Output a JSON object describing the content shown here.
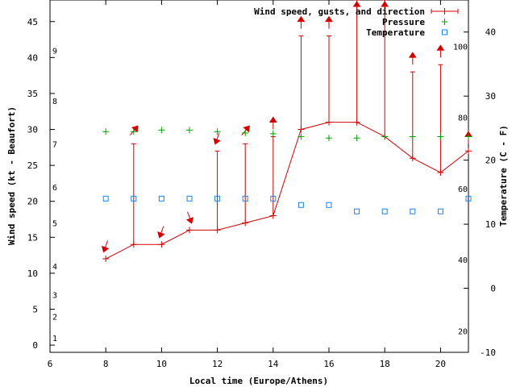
{
  "chart_data": {
    "type": "line",
    "title": "",
    "xlabel": "Local time (Europe/Athens)",
    "ylabel": "Wind speed (kt - Beaufort)",
    "y2label": "Temperature (C - F)",
    "xlim": [
      6,
      21
    ],
    "ylim": [
      -1,
      48
    ],
    "y2lim": [
      -10,
      45
    ],
    "x_ticks": [
      6,
      8,
      10,
      12,
      14,
      16,
      18,
      20
    ],
    "y_ticks": [
      0,
      5,
      10,
      15,
      20,
      25,
      30,
      35,
      40,
      45
    ],
    "y2_ticks": [
      -10,
      0,
      10,
      20,
      30,
      40
    ],
    "beaufort_labels": [
      {
        "label": "1",
        "kt": 1
      },
      {
        "label": "2",
        "kt": 4
      },
      {
        "label": "3",
        "kt": 7
      },
      {
        "label": "4",
        "kt": 11
      },
      {
        "label": "5",
        "kt": 17
      },
      {
        "label": "6",
        "kt": 22
      },
      {
        "label": "7",
        "kt": 28
      },
      {
        "label": "8",
        "kt": 34
      },
      {
        "label": "9",
        "kt": 41
      }
    ],
    "fahrenheit_labels": [
      {
        "label": "20",
        "f": 20
      },
      {
        "label": "40",
        "f": 40
      },
      {
        "label": "60",
        "f": 60
      },
      {
        "label": "80",
        "f": 80
      },
      {
        "label": "100",
        "f": 100
      }
    ],
    "legend": [
      {
        "label": "Wind speed, gusts, and direction",
        "color": "#d40000"
      },
      {
        "label": "Pressure",
        "color": "#00a000"
      },
      {
        "label": "Temperature",
        "color": "#1e82e6"
      }
    ],
    "series": [
      {
        "name": "Wind speed",
        "color": "#d40000",
        "x": [
          8,
          9,
          10,
          11,
          12,
          13,
          14,
          15,
          16,
          17,
          18,
          19,
          20,
          21
        ],
        "values": [
          12,
          14,
          14,
          16,
          16,
          17,
          18,
          30,
          31,
          31,
          29,
          26,
          24,
          27
        ],
        "gusts": [
          null,
          28,
          null,
          null,
          27,
          28,
          29,
          43,
          43,
          48,
          48,
          38,
          39,
          null
        ],
        "direction_deg": [
          20,
          220,
          20,
          340,
          20,
          220,
          180,
          180,
          180,
          180,
          180,
          180,
          180,
          180
        ]
      },
      {
        "name": "Pressure",
        "color": "#00a000",
        "x": [
          8,
          9,
          10,
          11,
          12,
          13,
          14,
          15,
          16,
          17,
          18,
          19,
          20,
          21
        ],
        "values": [
          29.7,
          29.7,
          29.9,
          29.9,
          29.7,
          29.5,
          29.4,
          29.0,
          28.8,
          28.8,
          29.0,
          29.0,
          29.0,
          29.0
        ]
      },
      {
        "name": "Temperature",
        "color": "#1e82e6",
        "x": [
          8,
          9,
          10,
          11,
          12,
          13,
          14,
          15,
          16,
          17,
          18,
          19,
          20,
          21
        ],
        "values": [
          14,
          14,
          14,
          14,
          14,
          14,
          14,
          13,
          13,
          12,
          12,
          12,
          12,
          14
        ]
      }
    ]
  }
}
